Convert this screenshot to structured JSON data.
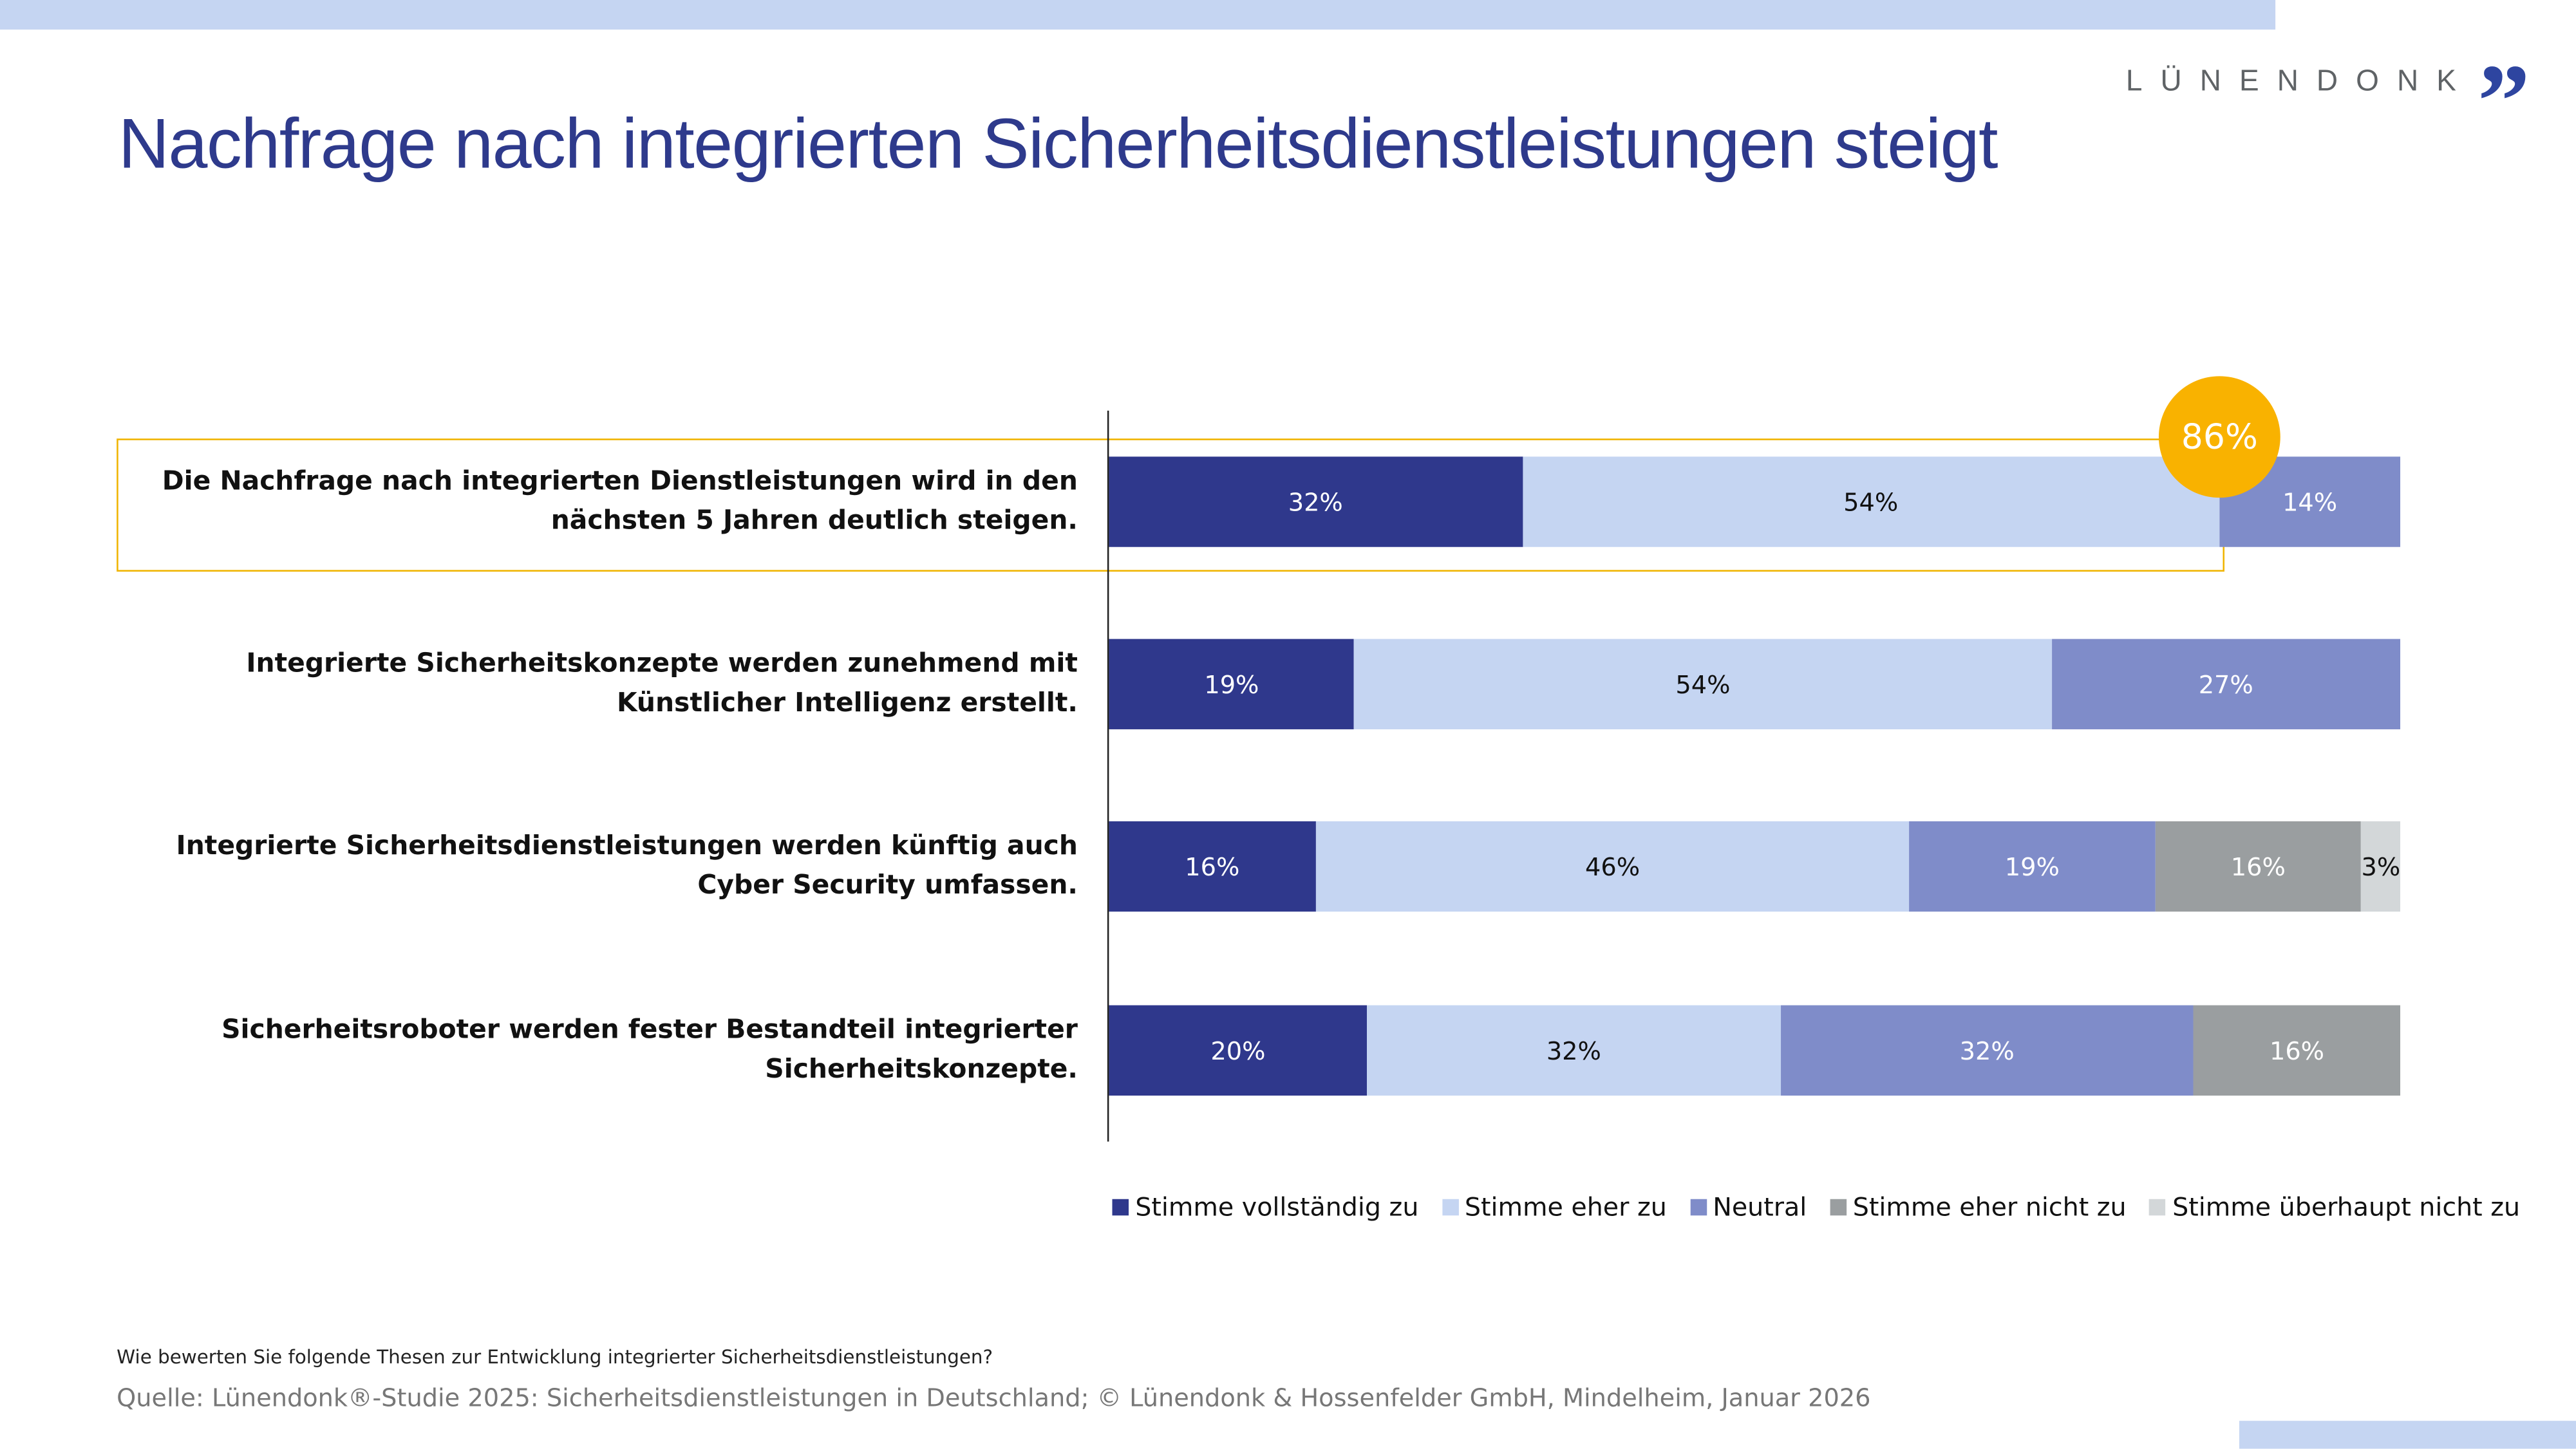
{
  "title": "Nachfrage nach integrierten Sicherheitsdienstleistungen steigt",
  "logo": {
    "text": "LÜNENDONK",
    "mark": "”"
  },
  "highlight": {
    "value": "86%",
    "color": "#f9b200"
  },
  "chart_data": {
    "type": "bar",
    "orientation": "horizontal",
    "stacked": true,
    "categories": [
      "Die Nachfrage nach integrierten Dienstleistungen wird in den nächsten 5 Jahren deutlich steigen.",
      "Integrierte Sicherheitskonzepte werden zunehmend mit Künstlicher Intelligenz erstellt.",
      "Integrierte Sicherheitsdienstleistungen werden künftig auch Cyber Security umfassen.",
      "Sicherheitsroboter werden fester Bestandteil integrierter Sicherheitskonzepte."
    ],
    "series": [
      {
        "name": "Stimme vollständig zu",
        "color": "#2f388c",
        "text_color": "#ffffff",
        "values": [
          32,
          19,
          16,
          20
        ]
      },
      {
        "name": "Stimme eher zu",
        "color": "#c5d5f2",
        "text_color": "#111111",
        "values": [
          54,
          54,
          46,
          32
        ]
      },
      {
        "name": "Neutral",
        "color": "#7f8cc9",
        "text_color": "#ffffff",
        "values": [
          14,
          27,
          19,
          32
        ]
      },
      {
        "name": "Stimme eher nicht zu",
        "color": "#9a9ea0",
        "text_color": "#ffffff",
        "values": [
          0,
          0,
          16,
          16
        ]
      },
      {
        "name": "Stimme überhaupt nicht zu",
        "color": "#d3d7d9",
        "text_color": "#111111",
        "values": [
          0,
          0,
          3,
          0
        ]
      }
    ],
    "unit": "%",
    "xlim": [
      0,
      100
    ],
    "legend": "bottom",
    "grid": false
  },
  "footer": {
    "question": "Wie bewerten Sie folgende Thesen zur Entwicklung integrierter Sicherheitsdienstleistungen?",
    "source": "Quelle: Lünendonk®-Studie 2025: Sicherheitsdienstleistungen in Deutschland; © Lünendonk & Hossenfelder GmbH, Mindelheim, Januar 2026"
  }
}
